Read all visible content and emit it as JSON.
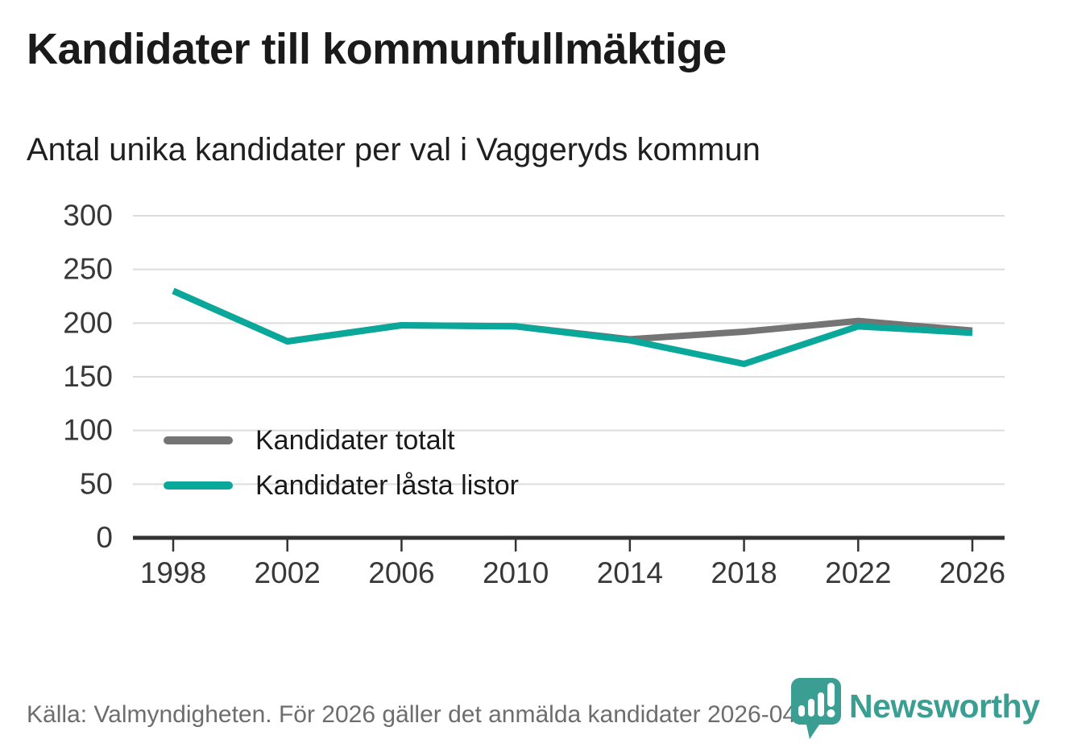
{
  "header": {
    "title": "Kandidater till kommunfullmäktige",
    "subtitle": "Antal unika kandidater per val i Vaggeryds kommun"
  },
  "chart_data": {
    "type": "line",
    "title": "Kandidater till kommunfullmäktige",
    "subtitle": "Antal unika kandidater per val i Vaggeryds kommun",
    "categories": [
      "1998",
      "2002",
      "2006",
      "2010",
      "2014",
      "2018",
      "2022",
      "2026"
    ],
    "series": [
      {
        "name": "Kandidater totalt",
        "color": "#747474",
        "values": [
          230,
          183,
          198,
          197,
          185,
          192,
          202,
          193
        ]
      },
      {
        "name": "Kandidater låsta listor",
        "color": "#0aa79b",
        "values": [
          230,
          183,
          198,
          197,
          184,
          162,
          197,
          191
        ]
      }
    ],
    "ylim": [
      0,
      300
    ],
    "yticks": [
      0,
      50,
      100,
      150,
      200,
      250,
      300
    ],
    "grid": true,
    "legend_position": "inside-left",
    "colors": {
      "gridline": "#dcdcdc",
      "axis": "#333333",
      "tick_label": "#383838"
    }
  },
  "footer": {
    "source": "Källa: Valmyndigheten. För 2026 gäller det anmälda kandidater 2026-04-10.",
    "brand": "Newsworthy",
    "brand_color": "#3a9e92"
  }
}
